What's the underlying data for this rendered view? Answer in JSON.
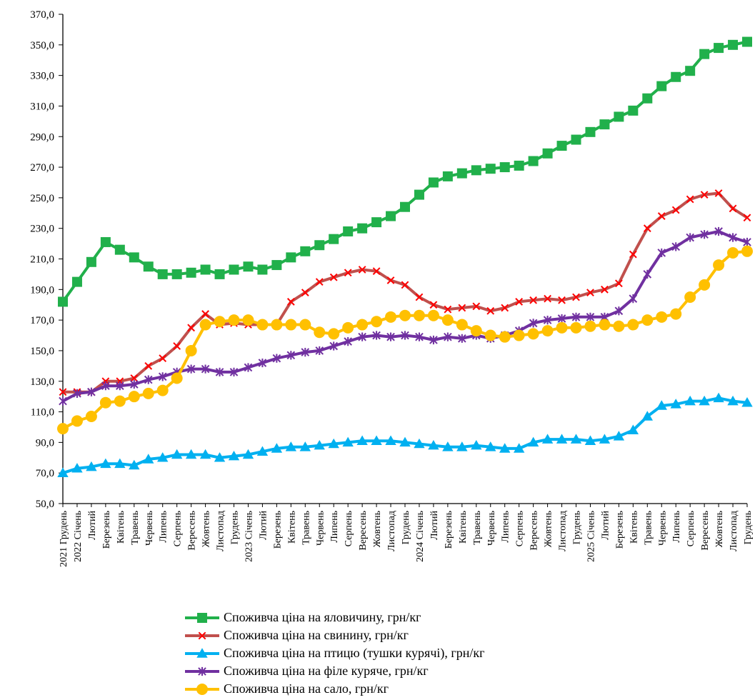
{
  "chart_data": {
    "type": "line",
    "title": "",
    "xlabel": "",
    "ylabel": "",
    "ylim": [
      50,
      370
    ],
    "yticks": [
      "50,0",
      "70,0",
      "90,0",
      "110,0",
      "130,0",
      "150,0",
      "170,0",
      "190,0",
      "210,0",
      "230,0",
      "250,0",
      "270,0",
      "290,0",
      "310,0",
      "330,0",
      "350,0",
      "370,0"
    ],
    "categories": [
      "2021 Грудень",
      "2022 Січень",
      "Лютий",
      "Березень",
      "Квітень",
      "Травень",
      "Червень",
      "Липень",
      "Серпень",
      "Вересень",
      "Жовтень",
      "Листопад",
      "Грудень",
      "2023 Січень",
      "Лютий",
      "Березень",
      "Квітень",
      "Травень",
      "Червень",
      "Липень",
      "Серпень",
      "Вересень",
      "Жовтень",
      "Листопад",
      "Грудень",
      "2024 Січень",
      "Лютий",
      "Березень",
      "Квітень",
      "Травень",
      "Червень",
      "Липень",
      "Серпень",
      "Вересень",
      "Жовтень",
      "Листопад",
      "Грудень",
      "2025 Січень",
      "Лютий",
      "Березень",
      "Квітень",
      "Травень",
      "Червень",
      "Липень",
      "Серпень",
      "Вересень",
      "Жовтень",
      "Листопад",
      "Грудень"
    ],
    "grid": false,
    "legend": "bottom",
    "series": [
      {
        "name": "Споживча ціна на яловичину, грн/кг",
        "color": "#21b04b",
        "marker": "square",
        "values": [
          182,
          195,
          208,
          221,
          216,
          211,
          205,
          200,
          200,
          201,
          203,
          200,
          203,
          205,
          203,
          206,
          211,
          215,
          219,
          223,
          228,
          230,
          234,
          238,
          244,
          252,
          260,
          264,
          266,
          268,
          269,
          270,
          271,
          274,
          279,
          284,
          288,
          293,
          298,
          303,
          307,
          315,
          323,
          329,
          333,
          344,
          348,
          350,
          352
        ]
      },
      {
        "name": "Споживча ціна на свинину, грн/кг",
        "color": "#c0504d",
        "marker": "x",
        "values": [
          123,
          123,
          123,
          130,
          130,
          132,
          140,
          145,
          153,
          165,
          174,
          167,
          168,
          167,
          167,
          167,
          182,
          188,
          195,
          198,
          201,
          203,
          202,
          196,
          193,
          185,
          180,
          177,
          178,
          179,
          176,
          178,
          182,
          183,
          184,
          183,
          185,
          188,
          190,
          194,
          213,
          230,
          238,
          242,
          249,
          252,
          253,
          243,
          237
        ]
      },
      {
        "name": "Споживча ціна на птицю (тушки курячі), грн/кг",
        "color": "#00b0f0",
        "marker": "triangle",
        "values": [
          70,
          73,
          74,
          76,
          76,
          75,
          79,
          80,
          82,
          82,
          82,
          80,
          81,
          82,
          84,
          86,
          87,
          87,
          88,
          89,
          90,
          91,
          91,
          91,
          90,
          89,
          88,
          87,
          87,
          88,
          87,
          86,
          86,
          90,
          92,
          92,
          92,
          91,
          92,
          94,
          98,
          107,
          114,
          115,
          117,
          117,
          119,
          117,
          116
        ]
      },
      {
        "name": "Споживча ціна на філе куряче, грн/кг",
        "color": "#7030a0",
        "marker": "star",
        "values": [
          117,
          122,
          123,
          127,
          127,
          128,
          131,
          133,
          136,
          138,
          138,
          136,
          136,
          139,
          142,
          145,
          147,
          149,
          150,
          153,
          156,
          159,
          160,
          159,
          160,
          159,
          157,
          159,
          158,
          160,
          158,
          160,
          163,
          168,
          170,
          171,
          172,
          172,
          172,
          176,
          184,
          200,
          214,
          218,
          224,
          226,
          228,
          224,
          221
        ]
      },
      {
        "name": "Споживча ціна на сало, грн/кг",
        "color": "#ffc000",
        "marker": "circle",
        "values": [
          99,
          104,
          107,
          116,
          117,
          120,
          122,
          124,
          132,
          150,
          167,
          169,
          170,
          170,
          167,
          167,
          167,
          167,
          162,
          161,
          165,
          167,
          169,
          172,
          173,
          173,
          173,
          170,
          167,
          163,
          160,
          159,
          160,
          161,
          163,
          165,
          165,
          166,
          167,
          166,
          167,
          170,
          172,
          174,
          185,
          193,
          206,
          214,
          215
        ]
      }
    ]
  }
}
